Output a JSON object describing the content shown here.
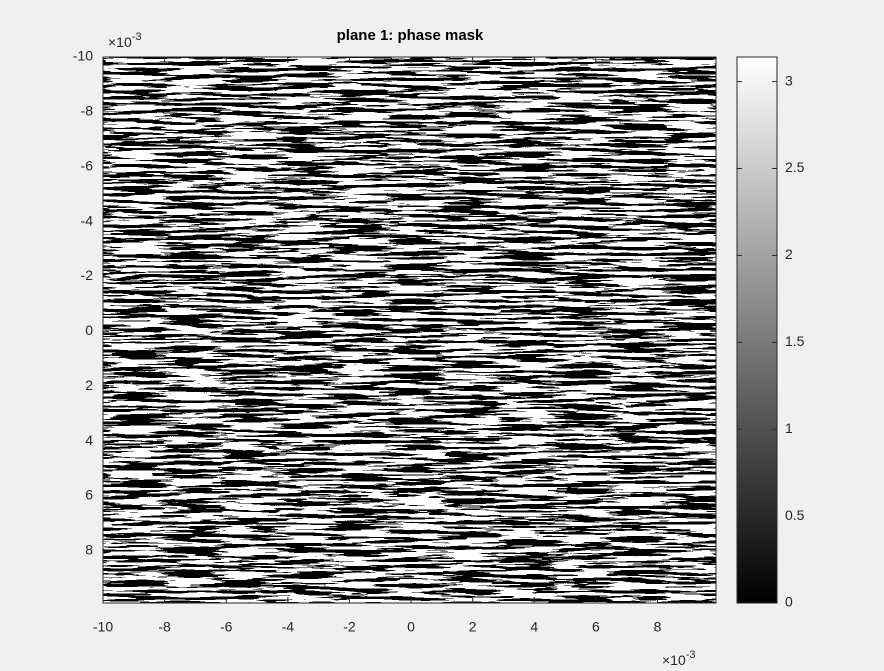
{
  "chart_data": {
    "type": "image",
    "title": "plane 1: phase mask",
    "xlim": [
      -0.01,
      0.0099
    ],
    "ylim": [
      -0.01,
      0.0099
    ],
    "y_reversed": true,
    "xticks": [
      {
        "value": -0.01,
        "label": "-10"
      },
      {
        "value": -0.008,
        "label": "-8"
      },
      {
        "value": -0.006,
        "label": "-6"
      },
      {
        "value": -0.004,
        "label": "-4"
      },
      {
        "value": -0.002,
        "label": "-2"
      },
      {
        "value": 0,
        "label": "0"
      },
      {
        "value": 0.002,
        "label": "2"
      },
      {
        "value": 0.004,
        "label": "4"
      },
      {
        "value": 0.006,
        "label": "6"
      },
      {
        "value": 0.008,
        "label": "8"
      }
    ],
    "yticks": [
      {
        "value": -0.01,
        "label": "-10"
      },
      {
        "value": -0.008,
        "label": "-8"
      },
      {
        "value": -0.006,
        "label": "-6"
      },
      {
        "value": -0.004,
        "label": "-4"
      },
      {
        "value": -0.002,
        "label": "-2"
      },
      {
        "value": 0,
        "label": "0"
      },
      {
        "value": 0.002,
        "label": "2"
      },
      {
        "value": 0.004,
        "label": "4"
      },
      {
        "value": 0.006,
        "label": "6"
      },
      {
        "value": 0.008,
        "label": "8"
      }
    ],
    "x_multiplier": {
      "base": "×10",
      "exponent": "-3"
    },
    "y_multiplier": {
      "base": "×10",
      "exponent": "-3"
    },
    "colorbar": {
      "clim": [
        0,
        3.1416
      ],
      "ticks": [
        0,
        0.5,
        1,
        1.5,
        2,
        2.5,
        3
      ],
      "colormap": "gray"
    }
  }
}
